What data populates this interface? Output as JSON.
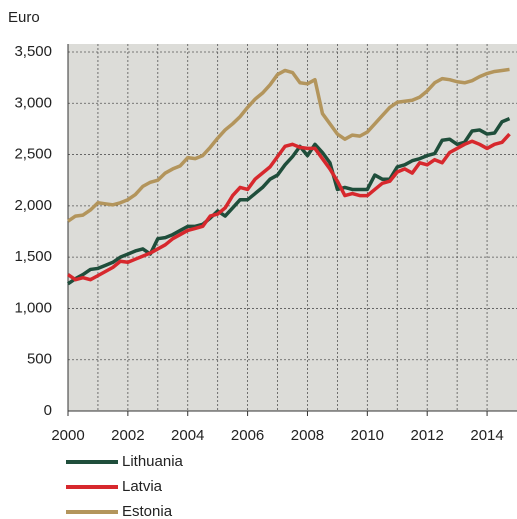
{
  "chart_data": {
    "type": "line",
    "y_label": "Euro",
    "x": [
      2000,
      2000.25,
      2000.5,
      2000.75,
      2001,
      2001.25,
      2001.5,
      2001.75,
      2002,
      2002.25,
      2002.5,
      2002.75,
      2003,
      2003.25,
      2003.5,
      2003.75,
      2004,
      2004.25,
      2004.5,
      2004.75,
      2005,
      2005.25,
      2005.5,
      2005.75,
      2006,
      2006.25,
      2006.5,
      2006.75,
      2007,
      2007.25,
      2007.5,
      2007.75,
      2008,
      2008.25,
      2008.5,
      2008.75,
      2009,
      2009.25,
      2009.5,
      2009.75,
      2010,
      2010.25,
      2010.5,
      2010.75,
      2011,
      2011.25,
      2011.5,
      2011.75,
      2012,
      2012.25,
      2012.5,
      2012.75,
      2013,
      2013.25,
      2013.5,
      2013.75,
      2014,
      2014.25,
      2014.5,
      2014.75
    ],
    "series": [
      {
        "name": "Lithuania",
        "color": "#1f4e3b",
        "values": [
          1240,
          1290,
          1330,
          1380,
          1390,
          1420,
          1450,
          1500,
          1530,
          1560,
          1580,
          1530,
          1680,
          1690,
          1720,
          1760,
          1800,
          1800,
          1820,
          1880,
          1950,
          1900,
          1980,
          2060,
          2060,
          2120,
          2180,
          2260,
          2300,
          2400,
          2480,
          2580,
          2490,
          2600,
          2520,
          2420,
          2160,
          2180,
          2160,
          2160,
          2160,
          2300,
          2260,
          2260,
          2380,
          2400,
          2440,
          2460,
          2490,
          2510,
          2640,
          2650,
          2600,
          2620,
          2730,
          2740,
          2700,
          2710,
          2820,
          2850
        ]
      },
      {
        "name": "Latvia",
        "color": "#d7282d",
        "values": [
          1330,
          1280,
          1300,
          1280,
          1320,
          1360,
          1400,
          1460,
          1450,
          1480,
          1510,
          1540,
          1580,
          1620,
          1680,
          1720,
          1760,
          1780,
          1800,
          1900,
          1920,
          1980,
          2100,
          2180,
          2160,
          2260,
          2320,
          2380,
          2480,
          2580,
          2600,
          2570,
          2560,
          2560,
          2460,
          2360,
          2240,
          2100,
          2120,
          2100,
          2100,
          2160,
          2220,
          2240,
          2330,
          2360,
          2320,
          2420,
          2400,
          2450,
          2420,
          2520,
          2560,
          2600,
          2630,
          2600,
          2560,
          2600,
          2620,
          2700
        ]
      },
      {
        "name": "Estonia",
        "color": "#b3955c",
        "values": [
          1850,
          1900,
          1910,
          1960,
          2030,
          2020,
          2010,
          2030,
          2060,
          2110,
          2190,
          2230,
          2250,
          2320,
          2360,
          2390,
          2470,
          2460,
          2490,
          2570,
          2660,
          2740,
          2800,
          2870,
          2960,
          3040,
          3100,
          3180,
          3280,
          3320,
          3300,
          3200,
          3190,
          3230,
          2900,
          2800,
          2700,
          2650,
          2690,
          2680,
          2720,
          2800,
          2880,
          2960,
          3010,
          3020,
          3030,
          3060,
          3120,
          3200,
          3240,
          3230,
          3210,
          3200,
          3220,
          3260,
          3290,
          3310,
          3320,
          3330
        ]
      }
    ],
    "xlim": [
      2000,
      2015
    ],
    "xticks": [
      2000,
      2002,
      2004,
      2006,
      2008,
      2010,
      2012,
      2014
    ],
    "x_grid": [
      2001,
      2002,
      2003,
      2004,
      2005,
      2006,
      2007,
      2008,
      2009,
      2010,
      2011,
      2012,
      2013,
      2014
    ],
    "ylim": [
      0,
      3500
    ],
    "yticks": [
      0,
      500,
      {
        "value": 1000,
        "label": "1,000"
      },
      {
        "value": 1500,
        "label": "1,500"
      },
      {
        "value": 2000,
        "label": "2,000"
      },
      {
        "value": 2500,
        "label": "2,500"
      },
      {
        "value": 3000,
        "label": "3,000"
      },
      {
        "value": 3500,
        "label": "3,500"
      }
    ],
    "grid": true,
    "legend": "bottom-left"
  }
}
